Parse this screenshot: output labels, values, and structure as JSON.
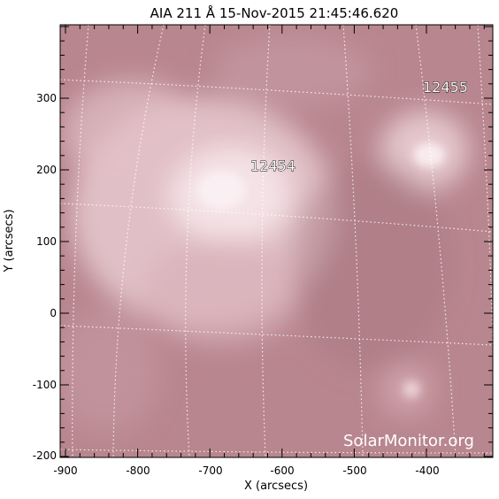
{
  "title": "AIA 211 Å 15-Nov-2015 21:45:46.620",
  "axes": {
    "xlabel": "X (arcsecs)",
    "ylabel": "Y (arcsecs)",
    "x_ticks": [
      "-900",
      "-800",
      "-700",
      "-600",
      "-500",
      "-400"
    ],
    "y_ticks": [
      "300",
      "200",
      "100",
      "0",
      "-100",
      "-200"
    ]
  },
  "regions": [
    {
      "label": "12455",
      "x_arcsec": -395,
      "y_arcsec": 312
    },
    {
      "label": "12454",
      "x_arcsec": -628,
      "y_arcsec": 202
    }
  ],
  "watermark": "SolarMonitor.org",
  "colors": {
    "image_base": "#b8868e",
    "image_bright": "#f6e6ea",
    "grid": "#ffffff"
  }
}
